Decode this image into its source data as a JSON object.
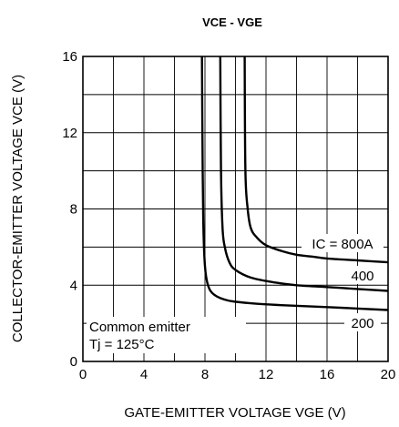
{
  "chart_data": {
    "type": "line",
    "title": "VCE - VGE",
    "xlabel": "GATE-EMITTER VOLTAGE  VGE (V)",
    "ylabel": "COLLECTOR-EMITTER VOLTAGE  VCE (V)",
    "xlim": [
      0,
      20
    ],
    "ylim": [
      0,
      16
    ],
    "x_ticks": [
      "0",
      "4",
      "8",
      "12",
      "16",
      "20"
    ],
    "y_ticks": [
      "0",
      "4",
      "8",
      "12",
      "16"
    ],
    "grid": true,
    "series": [
      {
        "name": "200",
        "x": [
          7.8,
          7.85,
          7.9,
          8.0,
          8.2,
          8.6,
          9.5,
          11,
          13,
          16,
          20
        ],
        "y": [
          16,
          10,
          7,
          5,
          4,
          3.5,
          3.2,
          3.05,
          2.95,
          2.85,
          2.7
        ]
      },
      {
        "name": "400",
        "x": [
          9.0,
          9.05,
          9.15,
          9.3,
          9.6,
          10,
          11,
          12.5,
          14,
          16,
          18,
          20
        ],
        "y": [
          16,
          10,
          7,
          6,
          5.2,
          4.8,
          4.4,
          4.15,
          4.0,
          3.9,
          3.8,
          3.7
        ]
      },
      {
        "name": "IC = 800A",
        "x": [
          10.6,
          10.65,
          10.8,
          11.0,
          11.4,
          12,
          13,
          14,
          15,
          16,
          18,
          20
        ],
        "y": [
          16,
          10,
          8,
          7,
          6.5,
          6.1,
          5.8,
          5.6,
          5.5,
          5.4,
          5.3,
          5.2
        ]
      }
    ],
    "annotations": [
      "Common emitter",
      "Tj = 125°C"
    ]
  }
}
